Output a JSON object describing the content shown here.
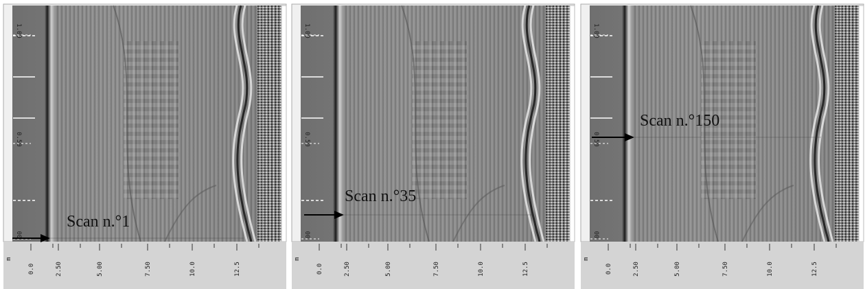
{
  "panels": [
    {
      "annotation": "Scan n.°1",
      "y_labels": [
        "1.00",
        "0.50",
        "00"
      ],
      "x_unit": "m",
      "x_labels": [
        "0.0",
        "2.50",
        "5.00",
        "7.50",
        "10.0",
        "12.5"
      ]
    },
    {
      "annotation": "Scan n.°35",
      "y_labels": [
        "1.00",
        "0.50",
        "00"
      ],
      "x_unit": "m",
      "x_labels": [
        "0.0",
        "2.50",
        "5.00",
        "7.50",
        "10.0",
        "12.5"
      ]
    },
    {
      "annotation": "Scan n.°150",
      "y_labels": [
        "1.00",
        "0.50",
        "00"
      ],
      "x_unit": "m",
      "x_labels": [
        "0.0",
        "2.50",
        "5.00",
        "7.50",
        "10.0",
        "12.5"
      ]
    }
  ]
}
